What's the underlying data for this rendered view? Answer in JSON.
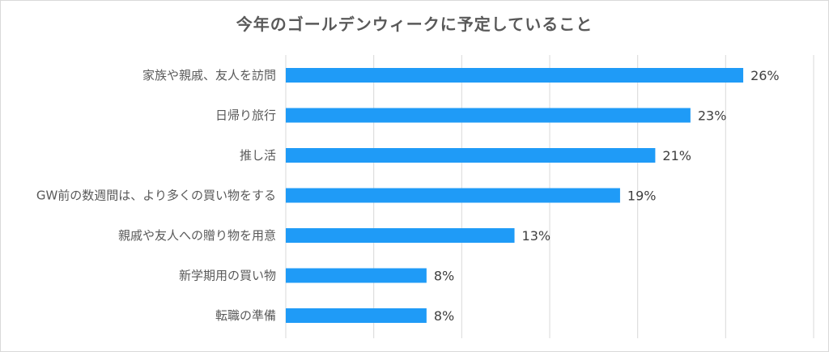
{
  "chart_data": {
    "type": "bar",
    "orientation": "horizontal",
    "title": "今年のゴールデンウィークに予定していること",
    "categories": [
      "家族や親戚、友人を訪問",
      "日帰り旅行",
      "推し活",
      "GW前の数週間は、より多くの買い物をする",
      "親戚や友人への贈り物を用意",
      "新学期用の買い物",
      "転職の準備"
    ],
    "values": [
      26,
      23,
      21,
      19,
      13,
      8,
      8
    ],
    "value_labels": [
      "26%",
      "23%",
      "21%",
      "19%",
      "13%",
      "8%",
      "8%"
    ],
    "xlim": [
      0,
      30
    ],
    "grid": true,
    "bar_color": "#1f9bf7",
    "gridline_color": "#d9d9d9"
  }
}
